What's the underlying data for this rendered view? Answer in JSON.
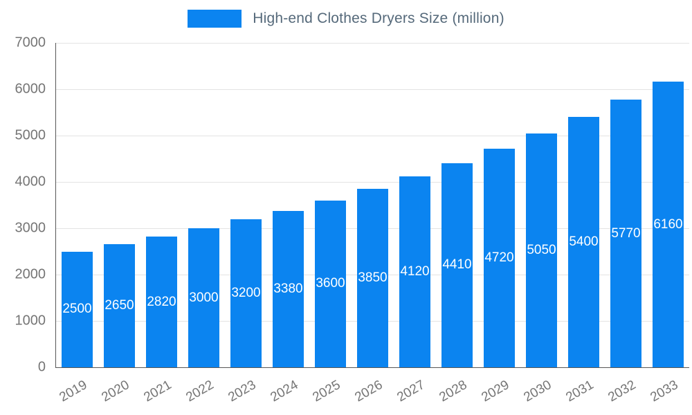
{
  "legend": {
    "title": "High-end Clothes Dryers Size (million)"
  },
  "chart_data": {
    "type": "bar",
    "title": "High-end Clothes Dryers Size (million)",
    "categories": [
      "2019",
      "2020",
      "2021",
      "2022",
      "2023",
      "2024",
      "2025",
      "2026",
      "2027",
      "2028",
      "2029",
      "2030",
      "2031",
      "2032",
      "2033"
    ],
    "values": [
      2500,
      2650,
      2820,
      3000,
      3200,
      3380,
      3600,
      3850,
      4120,
      4410,
      4720,
      5050,
      5400,
      5770,
      6160
    ],
    "xlabel": "",
    "ylabel": "",
    "ylim": [
      0,
      7000
    ],
    "yticks": [
      0,
      1000,
      2000,
      3000,
      4000,
      5000,
      6000,
      7000
    ],
    "grid": true,
    "legend_position": "top",
    "bar_color": "#0b84f0",
    "value_label_color": "#ffffff",
    "axis_label_color": "#757575",
    "title_color": "#55697a",
    "gridline_color": "#e3e3e3"
  }
}
